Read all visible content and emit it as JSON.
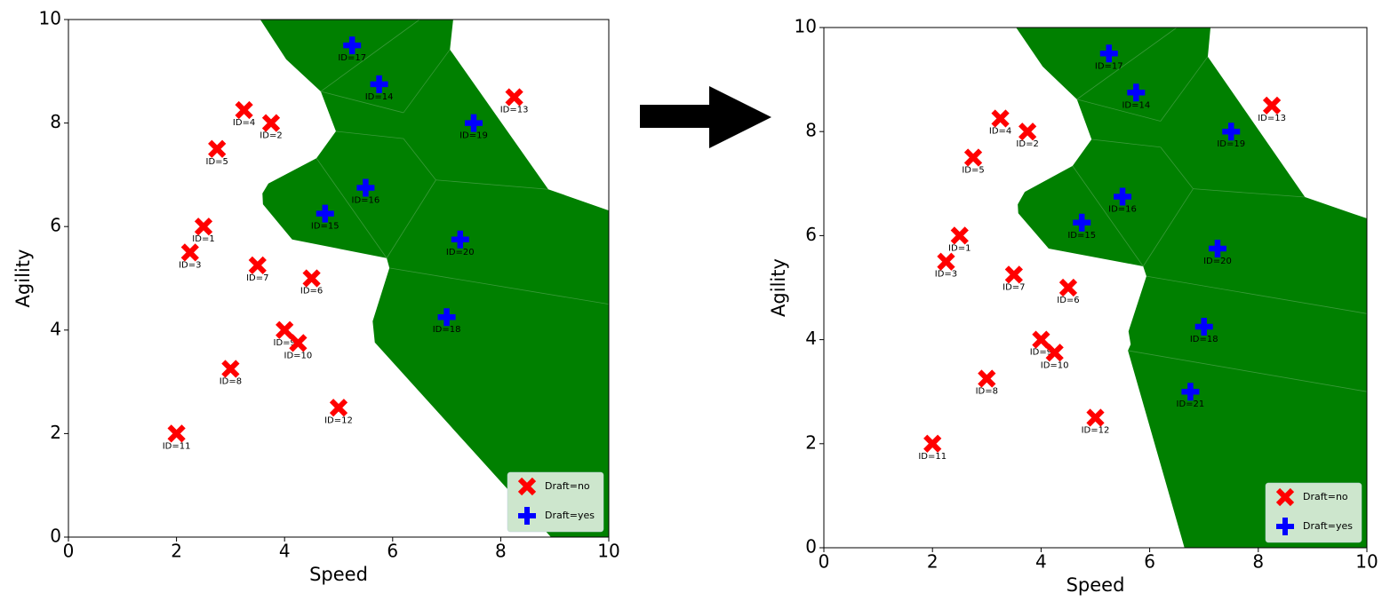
{
  "chart_data": [
    {
      "type": "scatter",
      "xlabel": "Speed",
      "ylabel": "Agility",
      "xlim": [
        0,
        10
      ],
      "ylim": [
        0,
        10
      ],
      "xticks": [
        0,
        2,
        4,
        6,
        8,
        10
      ],
      "yticks": [
        0,
        2,
        4,
        6,
        8,
        10
      ],
      "legend": "lower right",
      "series": [
        {
          "name": "Draft=no",
          "color": "#ff0000",
          "marker": "x",
          "x": [
            2.5,
            3.75,
            2.25,
            3.25,
            2.75,
            4.5,
            3.5,
            3,
            4,
            4.25,
            2,
            5,
            8.25
          ],
          "values": [
            6,
            8,
            5.5,
            8.25,
            7.5,
            5,
            5.25,
            3.25,
            4,
            3.75,
            2,
            2.5,
            8.5
          ],
          "labels": [
            "ID=1",
            "ID=2",
            "ID=3",
            "ID=4",
            "ID=5",
            "ID=6",
            "ID=7",
            "ID=8",
            "ID=9",
            "ID=10",
            "ID=11",
            "ID=12",
            "ID=13"
          ]
        },
        {
          "name": "Draft=yes",
          "color": "#0000ff",
          "marker": "plus",
          "x": [
            5.75,
            4.75,
            5.5,
            5.25,
            7,
            7.5,
            7.25
          ],
          "values": [
            8.75,
            6.25,
            6.75,
            9.5,
            4.25,
            8,
            5.75
          ],
          "labels": [
            "ID=14",
            "ID=15",
            "ID=16",
            "ID=17",
            "ID=18",
            "ID=19",
            "ID=20"
          ]
        }
      ]
    },
    {
      "type": "scatter",
      "xlabel": "Speed",
      "ylabel": "Agility",
      "xlim": [
        0,
        10
      ],
      "ylim": [
        0,
        10
      ],
      "xticks": [
        0,
        2,
        4,
        6,
        8,
        10
      ],
      "yticks": [
        0,
        2,
        4,
        6,
        8,
        10
      ],
      "legend": "lower right",
      "series": [
        {
          "name": "Draft=no",
          "color": "#ff0000",
          "marker": "x",
          "x": [
            2.5,
            3.75,
            2.25,
            3.25,
            2.75,
            4.5,
            3.5,
            3,
            4,
            4.25,
            2,
            5,
            8.25
          ],
          "values": [
            6,
            8,
            5.5,
            8.25,
            7.5,
            5,
            5.25,
            3.25,
            4,
            3.75,
            2,
            2.5,
            8.5
          ],
          "labels": [
            "ID=1",
            "ID=2",
            "ID=3",
            "ID=4",
            "ID=5",
            "ID=6",
            "ID=7",
            "ID=8",
            "ID=9",
            "ID=10",
            "ID=11",
            "ID=12",
            "ID=13"
          ]
        },
        {
          "name": "Draft=yes",
          "color": "#0000ff",
          "marker": "plus",
          "x": [
            5.75,
            4.75,
            5.5,
            5.25,
            7,
            7.5,
            7.25,
            6.75
          ],
          "values": [
            8.75,
            6.25,
            6.75,
            9.5,
            4.25,
            8,
            5.75,
            3
          ],
          "labels": [
            "ID=14",
            "ID=15",
            "ID=16",
            "ID=17",
            "ID=18",
            "ID=19",
            "ID=20",
            "ID=21"
          ]
        }
      ]
    }
  ]
}
